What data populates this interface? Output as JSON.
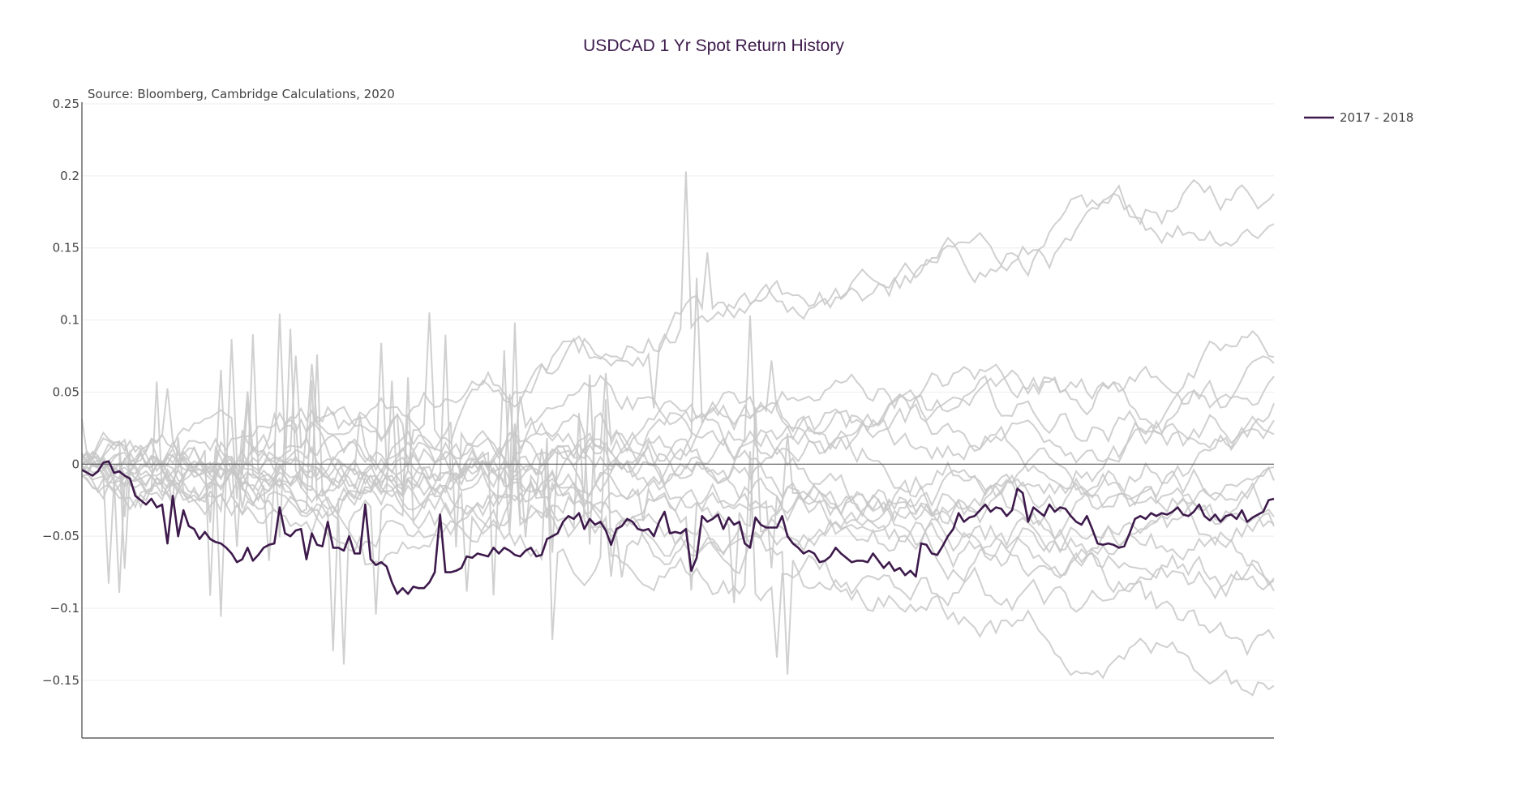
{
  "chart_data": {
    "type": "line",
    "title": "USDCAD 1 Yr Spot Return History",
    "source": "Source: Bloomberg, Cambridge Calculations, 2020",
    "xlabel": "",
    "ylabel": "",
    "ylim": [
      -0.19,
      0.25
    ],
    "yticks": [
      {
        "value": 0.25,
        "label": "0.25"
      },
      {
        "value": 0.2,
        "label": "0.2"
      },
      {
        "value": 0.15,
        "label": "0.15"
      },
      {
        "value": 0.1,
        "label": "0.1"
      },
      {
        "value": 0.05,
        "label": "0.05"
      },
      {
        "value": 0,
        "label": "0"
      },
      {
        "value": -0.05,
        "label": "−0.05"
      },
      {
        "value": -0.1,
        "label": "−0.1"
      },
      {
        "value": -0.15,
        "label": "−0.15"
      }
    ],
    "grid": true,
    "legend": {
      "placement": "top-right"
    },
    "highlight_color": "#3d1a4b",
    "background_color": "#c8c8c8",
    "highlight_series": {
      "name": "2017 - 2018",
      "values": [
        -0.004,
        -0.006,
        -0.008,
        -0.005,
        0.001,
        0.002,
        -0.006,
        -0.005,
        -0.008,
        -0.01,
        -0.022,
        -0.025,
        -0.028,
        -0.024,
        -0.03,
        -0.028,
        -0.055,
        -0.022,
        -0.05,
        -0.032,
        -0.043,
        -0.045,
        -0.052,
        -0.047,
        -0.052,
        -0.054,
        -0.055,
        -0.058,
        -0.062,
        -0.068,
        -0.066,
        -0.058,
        -0.067,
        -0.063,
        -0.058,
        -0.056,
        -0.055,
        -0.03,
        -0.048,
        -0.05,
        -0.046,
        -0.045,
        -0.066,
        -0.048,
        -0.056,
        -0.057,
        -0.04,
        -0.058,
        -0.058,
        -0.06,
        -0.05,
        -0.062,
        -0.062,
        -0.028,
        -0.066,
        -0.07,
        -0.068,
        -0.071,
        -0.082,
        -0.09,
        -0.086,
        -0.09,
        -0.085,
        -0.086,
        -0.086,
        -0.082,
        -0.075,
        -0.035,
        -0.075,
        -0.075,
        -0.074,
        -0.072,
        -0.064,
        -0.065,
        -0.062,
        -0.063,
        -0.064,
        -0.058,
        -0.062,
        -0.058,
        -0.06,
        -0.063,
        -0.064,
        -0.06,
        -0.058,
        -0.064,
        -0.063,
        -0.052,
        -0.05,
        -0.048,
        -0.04,
        -0.036,
        -0.038,
        -0.034,
        -0.045,
        -0.038,
        -0.042,
        -0.04,
        -0.046,
        -0.056,
        -0.045,
        -0.043,
        -0.038,
        -0.04,
        -0.045,
        -0.046,
        -0.045,
        -0.05,
        -0.04,
        -0.033,
        -0.048,
        -0.047,
        -0.048,
        -0.045,
        -0.074,
        -0.065,
        -0.036,
        -0.04,
        -0.038,
        -0.035,
        -0.045,
        -0.037,
        -0.042,
        -0.04,
        -0.055,
        -0.058,
        -0.037,
        -0.042,
        -0.044,
        -0.044,
        -0.044,
        -0.036,
        -0.05,
        -0.055,
        -0.058,
        -0.062,
        -0.06,
        -0.062,
        -0.068,
        -0.067,
        -0.064,
        -0.058,
        -0.062,
        -0.065,
        -0.068,
        -0.067,
        -0.067,
        -0.068,
        -0.062,
        -0.067,
        -0.072,
        -0.068,
        -0.074,
        -0.072,
        -0.077,
        -0.074,
        -0.078,
        -0.055,
        -0.056,
        -0.062,
        -0.063,
        -0.057,
        -0.05,
        -0.045,
        -0.034,
        -0.04,
        -0.037,
        -0.036,
        -0.032,
        -0.028,
        -0.033,
        -0.03,
        -0.031,
        -0.036,
        -0.032,
        -0.017,
        -0.02,
        -0.04,
        -0.03,
        -0.033,
        -0.036,
        -0.028,
        -0.033,
        -0.03,
        -0.031,
        -0.036,
        -0.04,
        -0.042,
        -0.036,
        -0.045,
        -0.055,
        -0.056,
        -0.055,
        -0.056,
        -0.058,
        -0.057,
        -0.048,
        -0.038,
        -0.036,
        -0.038,
        -0.034,
        -0.036,
        -0.034,
        -0.035,
        -0.033,
        -0.03,
        -0.035,
        -0.036,
        -0.033,
        -0.028,
        -0.036,
        -0.039,
        -0.035,
        -0.04,
        -0.036,
        -0.035,
        -0.038,
        -0.032,
        -0.04,
        -0.037,
        -0.035,
        -0.033,
        -0.025,
        -0.024
      ]
    }
  }
}
